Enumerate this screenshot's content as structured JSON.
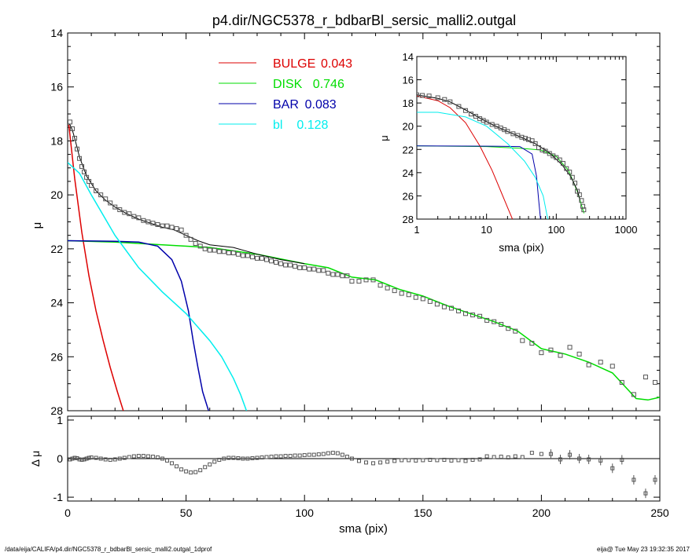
{
  "chart_data": [
    {
      "type": "line",
      "panel": "main",
      "title": "p4.dir/NGC5378_r_bdbarBl_sersic_malli2.outgal",
      "xlabel": "",
      "ylabel": "μ",
      "xlim": [
        0,
        250
      ],
      "ylim": [
        28,
        14
      ],
      "y_inverted": true,
      "yticks": [
        "14",
        "16",
        "18",
        "20",
        "22",
        "24",
        "26",
        "28"
      ],
      "legend_placement": "top-center",
      "legend": [
        {
          "name": "BULGE",
          "value": "0.043",
          "color": "#dd0000"
        },
        {
          "name": "DISK",
          "value": "0.746",
          "color": "#00dd00"
        },
        {
          "name": "BAR",
          "value": "0.083",
          "color": "#0000aa"
        },
        {
          "name": "bl",
          "value": "0.128",
          "color": "#00eeee"
        }
      ],
      "series": [
        {
          "name": "BULGE",
          "color": "#dd0000",
          "x": [
            0.5,
            3,
            6,
            9,
            12,
            15,
            18,
            21,
            23.5
          ],
          "y": [
            17.4,
            19.4,
            21.4,
            23.0,
            24.3,
            25.4,
            26.4,
            27.3,
            28.0
          ]
        },
        {
          "name": "DISK",
          "color": "#00dd00",
          "x": [
            0,
            20,
            40,
            60,
            80,
            100,
            110,
            120,
            130,
            140,
            150,
            160,
            170,
            180,
            190,
            200,
            210,
            220,
            230,
            240,
            245,
            250
          ],
          "y": [
            21.7,
            21.75,
            21.85,
            21.95,
            22.2,
            22.55,
            22.7,
            23.05,
            23.15,
            23.5,
            23.75,
            24.1,
            24.4,
            24.7,
            25.05,
            25.7,
            25.9,
            26.2,
            26.6,
            27.55,
            27.6,
            27.5
          ]
        },
        {
          "name": "BAR",
          "color": "#0000aa",
          "x": [
            0,
            20,
            30,
            38,
            44,
            48,
            51,
            53,
            55,
            57,
            59.5
          ],
          "y": [
            21.7,
            21.72,
            21.75,
            21.9,
            22.4,
            23.2,
            24.3,
            25.4,
            26.4,
            27.3,
            28.0
          ]
        },
        {
          "name": "bl",
          "color": "#00eeee",
          "x": [
            0,
            5,
            10,
            20,
            30,
            40,
            50,
            60,
            65,
            70,
            73,
            75.5
          ],
          "y": [
            18.8,
            19.2,
            20.0,
            21.5,
            22.7,
            23.6,
            24.4,
            25.4,
            26.0,
            26.8,
            27.4,
            28.0
          ]
        },
        {
          "name": "model",
          "color": "#000000",
          "x": [
            0,
            1,
            2,
            3,
            5,
            8,
            12,
            16,
            20,
            25,
            30,
            35,
            40,
            45,
            50,
            55,
            60,
            70,
            80,
            90,
            100
          ],
          "y": [
            17.35,
            17.4,
            17.6,
            17.9,
            18.6,
            19.3,
            19.85,
            20.2,
            20.45,
            20.7,
            20.9,
            21.05,
            21.2,
            21.3,
            21.5,
            21.7,
            21.85,
            21.95,
            22.2,
            22.4,
            22.55
          ]
        }
      ],
      "observed": {
        "x": [
          1,
          2,
          3,
          4,
          5,
          6,
          7,
          8,
          9,
          10,
          12,
          14,
          16,
          18,
          20,
          22,
          24,
          26,
          28,
          30,
          32,
          34,
          36,
          38,
          40,
          42,
          44,
          46,
          48,
          50,
          52,
          54,
          56,
          58,
          60,
          62,
          64,
          66,
          68,
          70,
          72,
          74,
          76,
          78,
          80,
          82,
          84,
          86,
          88,
          90,
          92,
          94,
          96,
          98,
          100,
          102,
          104,
          106,
          108,
          110,
          112,
          114,
          116,
          118,
          120,
          123,
          126,
          129,
          132,
          135,
          138,
          141,
          144,
          147,
          150,
          153,
          156,
          159,
          162,
          165,
          168,
          171,
          174,
          177,
          180,
          183,
          186,
          189,
          192,
          196,
          200,
          204,
          208,
          212,
          216,
          220,
          225,
          230,
          234,
          239,
          244,
          248
        ],
        "y": [
          17.3,
          17.55,
          17.9,
          18.3,
          18.65,
          18.95,
          19.15,
          19.35,
          19.5,
          19.65,
          19.85,
          20.0,
          20.15,
          20.3,
          20.45,
          20.55,
          20.65,
          20.7,
          20.8,
          20.85,
          20.95,
          21.0,
          21.05,
          21.1,
          21.15,
          21.15,
          21.2,
          21.25,
          21.3,
          21.5,
          21.65,
          21.8,
          21.9,
          22.0,
          22.05,
          22.05,
          22.1,
          22.1,
          22.15,
          22.15,
          22.2,
          22.25,
          22.25,
          22.3,
          22.35,
          22.35,
          22.4,
          22.45,
          22.5,
          22.55,
          22.6,
          22.6,
          22.65,
          22.7,
          22.7,
          22.75,
          22.75,
          22.8,
          22.8,
          22.9,
          22.95,
          22.95,
          23.0,
          23.0,
          23.2,
          23.2,
          23.15,
          23.15,
          23.35,
          23.45,
          23.55,
          23.65,
          23.7,
          23.8,
          23.85,
          23.95,
          24.05,
          24.15,
          24.2,
          24.3,
          24.4,
          24.45,
          24.5,
          24.65,
          24.7,
          24.8,
          24.95,
          25.05,
          25.4,
          25.5,
          25.85,
          25.75,
          25.95,
          25.65,
          25.9,
          26.3,
          26.2,
          26.35,
          26.95,
          27.4,
          26.75,
          26.95
        ]
      }
    },
    {
      "type": "scatter",
      "panel": "inset",
      "xlabel": "sma (pix)",
      "ylabel": "μ",
      "xscale": "log",
      "xlim": [
        1,
        1000
      ],
      "ylim": [
        28,
        14
      ],
      "y_inverted": true,
      "xticks": [
        "1",
        "10",
        "100",
        "1000"
      ],
      "yticks": [
        "14",
        "16",
        "18",
        "20",
        "22",
        "24",
        "26",
        "28"
      ],
      "series": [
        {
          "name": "BULGE",
          "color": "#dd0000",
          "x": [
            1,
            2,
            3,
            5,
            8,
            12,
            16,
            20,
            23.5
          ],
          "y": [
            17.4,
            17.8,
            18.4,
            19.7,
            21.7,
            23.8,
            25.6,
            27.0,
            28.0
          ]
        },
        {
          "name": "DISK",
          "color": "#00dd00",
          "x": [
            1,
            10,
            30,
            60,
            100,
            150,
            200,
            250
          ],
          "y": [
            21.7,
            21.75,
            21.9,
            22.05,
            22.6,
            23.8,
            25.6,
            27.5
          ]
        },
        {
          "name": "BAR",
          "color": "#0000aa",
          "x": [
            1,
            10,
            30,
            45,
            52,
            56,
            59.5
          ],
          "y": [
            21.7,
            21.72,
            21.75,
            22.4,
            24.3,
            26.4,
            28.0
          ]
        },
        {
          "name": "bl",
          "color": "#00eeee",
          "x": [
            1,
            2,
            5,
            10,
            20,
            35,
            50,
            65,
            75.5
          ],
          "y": [
            18.8,
            18.8,
            19.2,
            20.0,
            21.5,
            23.0,
            24.4,
            26.0,
            28.0
          ]
        },
        {
          "name": "model",
          "color": "#000000",
          "x": [
            1,
            2,
            3,
            5,
            8,
            12,
            20,
            30,
            50,
            80,
            120,
            160,
            200,
            220
          ],
          "y": [
            17.3,
            17.6,
            17.9,
            18.6,
            19.3,
            19.85,
            20.45,
            20.9,
            21.5,
            22.3,
            23.3,
            24.3,
            25.5,
            26.4
          ]
        }
      ],
      "observed": {
        "x": [
          1,
          1.2,
          1.5,
          2,
          2.5,
          3,
          4,
          5,
          6,
          7,
          8,
          9,
          10,
          12,
          14,
          16,
          18,
          20,
          24,
          28,
          32,
          36,
          40,
          45,
          50,
          56,
          63,
          70,
          80,
          90,
          100,
          112,
          125,
          140,
          155,
          170,
          185,
          200,
          215,
          230,
          240,
          248
        ],
        "y": [
          17.3,
          17.35,
          17.4,
          17.55,
          17.7,
          17.9,
          18.3,
          18.65,
          18.95,
          19.15,
          19.35,
          19.5,
          19.65,
          19.85,
          20.0,
          20.15,
          20.3,
          20.45,
          20.65,
          20.8,
          20.95,
          21.05,
          21.15,
          21.25,
          21.5,
          21.85,
          22.05,
          22.15,
          22.35,
          22.55,
          22.7,
          22.9,
          23.2,
          23.65,
          23.95,
          24.4,
          24.9,
          25.6,
          25.9,
          26.4,
          26.9,
          27.2
        ]
      }
    },
    {
      "type": "scatter",
      "panel": "residual",
      "xlabel": "sma (pix)",
      "ylabel": "Δ μ",
      "xlim": [
        0,
        250
      ],
      "ylim": [
        -1.1,
        1.1
      ],
      "xticks": [
        "0",
        "50",
        "100",
        "150",
        "200",
        "250"
      ],
      "yticks": [
        "1",
        "0",
        "-1"
      ],
      "zero_line": true,
      "points": {
        "x": [
          1,
          2,
          3,
          4,
          5,
          6,
          7,
          8,
          9,
          10,
          12,
          14,
          16,
          18,
          20,
          22,
          24,
          26,
          28,
          30,
          32,
          34,
          36,
          38,
          40,
          42,
          44,
          46,
          48,
          50,
          52,
          54,
          56,
          58,
          60,
          62,
          64,
          66,
          68,
          70,
          72,
          74,
          76,
          78,
          80,
          82,
          84,
          86,
          88,
          90,
          92,
          94,
          96,
          98,
          100,
          102,
          104,
          106,
          108,
          110,
          112,
          114,
          116,
          118,
          120,
          123,
          126,
          129,
          132,
          135,
          138,
          141,
          144,
          147,
          150,
          153,
          156,
          159,
          162,
          165,
          168,
          171,
          174,
          177,
          180,
          183,
          186,
          189,
          192,
          196,
          200,
          204,
          208,
          212,
          216,
          220,
          225,
          230,
          234,
          239,
          244,
          248
        ],
        "y": [
          -0.02,
          0.0,
          0.02,
          0.01,
          -0.02,
          -0.03,
          -0.02,
          0.0,
          0.02,
          0.03,
          0.02,
          0.0,
          -0.02,
          -0.03,
          -0.02,
          0.0,
          0.02,
          0.04,
          0.06,
          0.07,
          0.07,
          0.06,
          0.05,
          0.03,
          0.0,
          -0.05,
          -0.12,
          -0.2,
          -0.28,
          -0.33,
          -0.36,
          -0.35,
          -0.3,
          -0.22,
          -0.15,
          -0.08,
          -0.03,
          0.0,
          0.02,
          0.02,
          0.01,
          0.0,
          0.0,
          0.01,
          0.02,
          0.03,
          0.04,
          0.05,
          0.06,
          0.06,
          0.07,
          0.07,
          0.08,
          0.08,
          0.09,
          0.1,
          0.1,
          0.11,
          0.12,
          0.14,
          0.15,
          0.14,
          0.1,
          0.05,
          0.0,
          -0.06,
          -0.1,
          -0.12,
          -0.1,
          -0.08,
          -0.06,
          -0.04,
          -0.04,
          -0.05,
          -0.04,
          -0.03,
          -0.04,
          -0.03,
          -0.05,
          -0.04,
          -0.06,
          -0.03,
          -0.02,
          0.06,
          0.04,
          0.05,
          0.03,
          0.06,
          0.04,
          0.15,
          0.12,
          0.12,
          -0.02,
          0.1,
          0.0,
          -0.02,
          -0.05,
          -0.25,
          -0.03,
          -0.55,
          -0.9,
          -0.55
        ]
      }
    }
  ],
  "footer": {
    "left": "/data/eija/CALIFA/p4.dir/NGC5378_r_bdbarBl_sersic_malli2.outgal_1dprof",
    "right": "eija@  Tue May 23 19:32:35 2017"
  }
}
